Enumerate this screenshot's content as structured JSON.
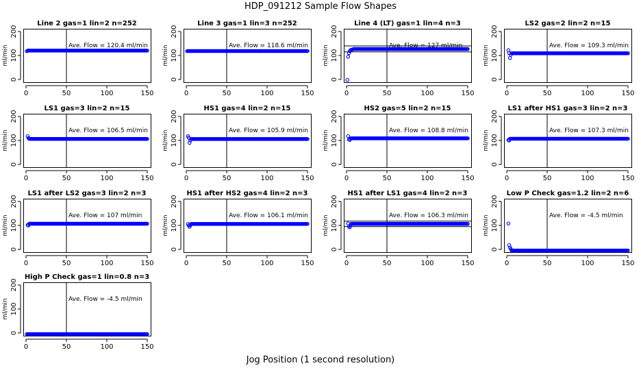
{
  "figure": {
    "title": "HDP_091212  Sample Flow Shapes",
    "xlabel": "Jog Position (1 second resolution)"
  },
  "chart_data": [
    {
      "type": "scatter",
      "title": "Line 2 gas=1 lin=2 n=252",
      "ylabel": "ml/min",
      "annotation": "Ave. Flow =  120.4  ml/min",
      "mean_flow": 120.4,
      "xlim": [
        0,
        150
      ],
      "ylim": [
        -20,
        220
      ],
      "xticks": [
        0,
        50,
        100,
        150
      ],
      "yticks": [
        0,
        100,
        200
      ],
      "vline_x": 50,
      "hlines": [],
      "series": [
        {
          "color": "#0000ff",
          "points": [
            [
              1,
              118
            ],
            [
              2,
              120
            ],
            [
              3,
              121
            ]
          ],
          "plateau": {
            "x_start": 4,
            "x_end": 150,
            "y": 120.4
          }
        }
      ]
    },
    {
      "type": "scatter",
      "title": "Line 3 gas=1 lin=3 n=252",
      "ylabel": "ml/min",
      "annotation": "Ave. Flow =  118.6  ml/min",
      "mean_flow": 118.6,
      "xlim": [
        0,
        150
      ],
      "ylim": [
        -20,
        220
      ],
      "xticks": [
        0,
        50,
        100,
        150
      ],
      "yticks": [
        0,
        100,
        200
      ],
      "vline_x": 50,
      "hlines": [],
      "series": [
        {
          "color": "#0000ff",
          "points": [
            [
              1,
              118
            ],
            [
              2,
              119
            ]
          ],
          "plateau": {
            "x_start": 3,
            "x_end": 150,
            "y": 118.6
          }
        }
      ]
    },
    {
      "type": "scatter",
      "title": "Line 4 (LT) gas=1 lin=4 n=3",
      "ylabel": "ml/min",
      "annotation": "Ave. Flow =  127  ml/min",
      "mean_flow": 127,
      "xlim": [
        0,
        150
      ],
      "ylim": [
        -20,
        220
      ],
      "xticks": [
        0,
        50,
        100,
        150
      ],
      "yticks": [
        0,
        100,
        200
      ],
      "vline_x": 50,
      "hlines": [
        115,
        140
      ],
      "series": [
        {
          "color": "#0000ff",
          "points": [
            [
              1,
              -2
            ],
            [
              2,
              95
            ],
            [
              3,
              110
            ],
            [
              4,
              118
            ],
            [
              5,
              122
            ],
            [
              6,
              124
            ],
            [
              7,
              125
            ],
            [
              8,
              126
            ]
          ],
          "plateau": {
            "x_start": 9,
            "x_end": 150,
            "y": 127
          }
        }
      ]
    },
    {
      "type": "scatter",
      "title": "LS2 gas=2 lin=2 n=15",
      "ylabel": "ml/min",
      "annotation": "Ave. Flow =  109.3  ml/min",
      "mean_flow": 109.3,
      "xlim": [
        0,
        150
      ],
      "ylim": [
        -20,
        220
      ],
      "xticks": [
        0,
        50,
        100,
        150
      ],
      "yticks": [
        0,
        100,
        200
      ],
      "vline_x": 50,
      "hlines": [],
      "series": [
        {
          "color": "#0000ff",
          "points": [
            [
              2,
              122
            ],
            [
              3,
              110
            ],
            [
              4,
              90
            ],
            [
              5,
              103
            ]
          ],
          "plateau": {
            "x_start": 6,
            "x_end": 150,
            "y": 109.3
          }
        }
      ]
    },
    {
      "type": "scatter",
      "title": "LS1 gas=3 lin=2 n=15",
      "ylabel": "ml/min",
      "annotation": "Ave. Flow =  106.5  ml/min",
      "mean_flow": 106.5,
      "xlim": [
        0,
        150
      ],
      "ylim": [
        -20,
        220
      ],
      "xticks": [
        0,
        50,
        100,
        150
      ],
      "yticks": [
        0,
        100,
        200
      ],
      "vline_x": 50,
      "hlines": [],
      "series": [
        {
          "color": "#0000ff",
          "points": [
            [
              2,
              118
            ],
            [
              3,
              110
            ]
          ],
          "plateau": {
            "x_start": 4,
            "x_end": 150,
            "y": 106.5
          }
        }
      ]
    },
    {
      "type": "scatter",
      "title": "HS1 gas=4 lin=2 n=15",
      "ylabel": "ml/min",
      "annotation": "Ave. Flow =  105.9  ml/min",
      "mean_flow": 105.9,
      "xlim": [
        0,
        150
      ],
      "ylim": [
        -20,
        220
      ],
      "xticks": [
        0,
        50,
        100,
        150
      ],
      "yticks": [
        0,
        100,
        200
      ],
      "vline_x": 50,
      "hlines": [],
      "series": [
        {
          "color": "#0000ff",
          "points": [
            [
              2,
              118
            ],
            [
              3,
              112
            ],
            [
              4,
              90
            ],
            [
              5,
              100
            ]
          ],
          "plateau": {
            "x_start": 6,
            "x_end": 150,
            "y": 105.9
          }
        }
      ]
    },
    {
      "type": "scatter",
      "title": "HS2 gas=5 lin=2 n=15",
      "ylabel": "ml/min",
      "annotation": "Ave. Flow =  108.8  ml/min",
      "mean_flow": 108.8,
      "xlim": [
        0,
        150
      ],
      "ylim": [
        -20,
        220
      ],
      "xticks": [
        0,
        50,
        100,
        150
      ],
      "yticks": [
        0,
        100,
        200
      ],
      "vline_x": 50,
      "hlines": [],
      "series": [
        {
          "color": "#0000ff",
          "points": [
            [
              2,
              118
            ],
            [
              3,
              104
            ],
            [
              4,
              102
            ]
          ],
          "plateau": {
            "x_start": 5,
            "x_end": 150,
            "y": 108.8
          }
        }
      ]
    },
    {
      "type": "scatter",
      "title": "LS1 after HS1 gas=3 lin=2 n=3",
      "ylabel": "ml/min",
      "annotation": "Ave. Flow =  107.3  ml/min",
      "mean_flow": 107.3,
      "xlim": [
        0,
        150
      ],
      "ylim": [
        -20,
        220
      ],
      "xticks": [
        0,
        50,
        100,
        150
      ],
      "yticks": [
        0,
        100,
        200
      ],
      "vline_x": 50,
      "hlines": [],
      "series": [
        {
          "color": "#0000ff",
          "points": [
            [
              2,
              102
            ],
            [
              3,
              100
            ]
          ],
          "plateau": {
            "x_start": 4,
            "x_end": 150,
            "y": 107.3
          }
        }
      ]
    },
    {
      "type": "scatter",
      "title": "LS1 after LS2 gas=3 lin=2 n=3",
      "ylabel": "ml/min",
      "annotation": "Ave. Flow =  107  ml/min",
      "mean_flow": 107,
      "xlim": [
        0,
        150
      ],
      "ylim": [
        -20,
        220
      ],
      "xticks": [
        0,
        50,
        100,
        150
      ],
      "yticks": [
        0,
        100,
        200
      ],
      "vline_x": 50,
      "hlines": [],
      "series": [
        {
          "color": "#0000ff",
          "points": [
            [
              2,
              102
            ],
            [
              3,
              100
            ]
          ],
          "plateau": {
            "x_start": 4,
            "x_end": 150,
            "y": 107
          }
        }
      ]
    },
    {
      "type": "scatter",
      "title": "HS1 after HS2 gas=4 lin=2 n=3",
      "ylabel": "ml/min",
      "annotation": "Ave. Flow =  106.1  ml/min",
      "mean_flow": 106.1,
      "xlim": [
        0,
        150
      ],
      "ylim": [
        -20,
        220
      ],
      "xticks": [
        0,
        50,
        100,
        150
      ],
      "yticks": [
        0,
        100,
        200
      ],
      "vline_x": 50,
      "hlines": [],
      "series": [
        {
          "color": "#0000ff",
          "points": [
            [
              2,
              106
            ],
            [
              3,
              100
            ],
            [
              4,
              94
            ],
            [
              5,
              100
            ]
          ],
          "plateau": {
            "x_start": 6,
            "x_end": 150,
            "y": 106.1
          }
        }
      ]
    },
    {
      "type": "scatter",
      "title": "HS1 after LS1 gas=4 lin=2 n=3",
      "ylabel": "ml/min",
      "annotation": "Ave. Flow =  106.3  ml/min",
      "mean_flow": 106.3,
      "xlim": [
        0,
        150
      ],
      "ylim": [
        -20,
        220
      ],
      "xticks": [
        0,
        50,
        100,
        150
      ],
      "yticks": [
        0,
        100,
        200
      ],
      "vline_x": 50,
      "hlines": [
        95,
        118
      ],
      "series": [
        {
          "color": "#0000ff",
          "points": [
            [
              2,
              108
            ],
            [
              3,
              96
            ],
            [
              4,
              92
            ],
            [
              5,
              100
            ]
          ],
          "plateau": {
            "x_start": 6,
            "x_end": 150,
            "y": 106.3
          }
        }
      ]
    },
    {
      "type": "scatter",
      "title": "Low P Check gas=1.2 lin=2 n=6",
      "ylabel": "ml/min",
      "annotation": "Ave. Flow =  -4.5  ml/min",
      "mean_flow": -4.5,
      "xlim": [
        0,
        150
      ],
      "ylim": [
        -20,
        220
      ],
      "xticks": [
        0,
        50,
        100,
        150
      ],
      "yticks": [
        0,
        100,
        200
      ],
      "vline_x": 50,
      "hlines": [],
      "series": [
        {
          "color": "#0000ff",
          "points": [
            [
              2,
              108
            ],
            [
              3,
              18
            ],
            [
              4,
              8
            ],
            [
              5,
              2
            ]
          ],
          "plateau": {
            "x_start": 6,
            "x_end": 150,
            "y": -4.5
          }
        }
      ]
    },
    {
      "type": "scatter",
      "title": "High P Check gas=1 lin=0.8 n=3",
      "ylabel": "ml/min",
      "annotation": "Ave. Flow =  -4.5  ml/min",
      "mean_flow": -4.5,
      "xlim": [
        0,
        150
      ],
      "ylim": [
        -20,
        220
      ],
      "xticks": [
        0,
        50,
        100,
        150
      ],
      "yticks": [
        0,
        100,
        200
      ],
      "vline_x": 50,
      "hlines": [],
      "series": [
        {
          "color": "#0000ff",
          "points": [],
          "plateau": {
            "x_start": 1,
            "x_end": 150,
            "y": -4.5
          }
        }
      ]
    }
  ]
}
